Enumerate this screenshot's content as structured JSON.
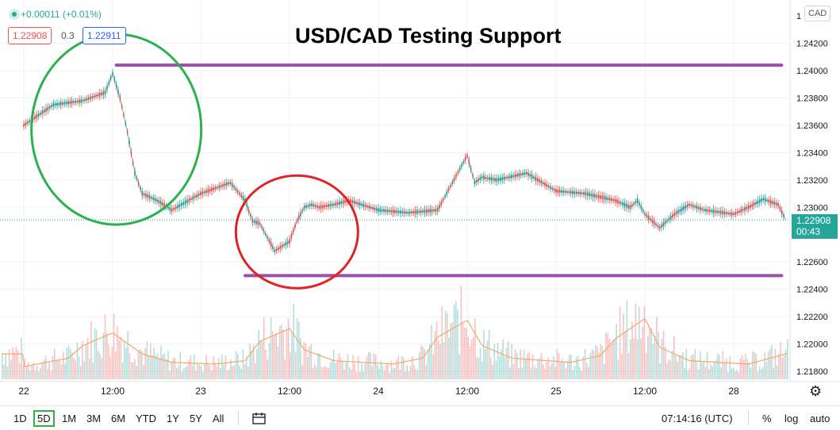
{
  "header": {
    "change": "+0.00011 (+0.01%)",
    "bid": "1.22908",
    "spread": "0.3",
    "ask": "1.22911"
  },
  "title": "USD/CAD Testing Support",
  "currency": "CAD",
  "last_price": {
    "price": "1.22908",
    "countdown": "00:43"
  },
  "toolbar": {
    "ranges": [
      "1D",
      "5D",
      "1M",
      "3M",
      "6M",
      "YTD",
      "1Y",
      "5Y",
      "All"
    ],
    "selected_range": "5D",
    "time": "07:14:16 (UTC)",
    "percent": "%",
    "log": "log",
    "auto": "auto"
  },
  "colors": {
    "up": "#26a69a",
    "down": "#ef5350",
    "resistance": "#9c4fa8",
    "green_circle": "#2bb24c",
    "red_circle": "#e02424",
    "volume_ma": "#f5a76a"
  },
  "chart_data": {
    "type": "line",
    "title": "USD/CAD Testing Support",
    "x_ticks": [
      "22",
      "12:00",
      "23",
      "12:00",
      "24",
      "12:00",
      "25",
      "12:00",
      "28"
    ],
    "y_ticks": [
      "1.24200",
      "1.24000",
      "1.23800",
      "1.23600",
      "1.23400",
      "1.23200",
      "1.23000",
      "1.22600",
      "1.22400",
      "1.22200",
      "1.22000",
      "1.21800"
    ],
    "ylim": [
      1.2175,
      1.2437
    ],
    "last_value": 1.22908,
    "series": [
      {
        "x": [
          "22 00:00",
          "22 04:00",
          "22 08:00",
          "22 11:00",
          "22 12:00",
          "22 13:00",
          "22 14:00",
          "22 15:00",
          "22 16:00",
          "22 18:00",
          "22 20:00",
          "23 00:00",
          "23 04:00",
          "23 06:00",
          "23 07:00",
          "23 08:00",
          "23 10:00",
          "23 12:00",
          "23 13:00",
          "23 14:00",
          "23 15:00",
          "23 16:00",
          "23 18:00",
          "23 20:00",
          "24 00:00",
          "24 04:00",
          "24 08:00",
          "24 12:00",
          "24 13:00",
          "24 14:00",
          "24 16:00",
          "24 20:00",
          "25 00:00",
          "25 04:00",
          "25 08:00",
          "25 10:00",
          "25 11:00",
          "25 12:00",
          "25 14:00",
          "25 16:00",
          "25 18:00",
          "25 20:00",
          "28 00:00",
          "28 02:00",
          "28 04:00",
          "28 06:00",
          "28 07:00"
        ],
        "values": [
          1.236,
          1.2375,
          1.2378,
          1.2384,
          1.2398,
          1.238,
          1.2355,
          1.2325,
          1.231,
          1.2305,
          1.2298,
          1.231,
          1.2318,
          1.2305,
          1.229,
          1.2288,
          1.2268,
          1.2275,
          1.229,
          1.23,
          1.2302,
          1.23,
          1.2302,
          1.2305,
          1.2298,
          1.2296,
          1.2298,
          1.2338,
          1.2318,
          1.2322,
          1.232,
          1.2325,
          1.2312,
          1.231,
          1.2305,
          1.23,
          1.2305,
          1.2295,
          1.2285,
          1.2295,
          1.2302,
          1.2298,
          1.2295,
          1.23,
          1.2306,
          1.2302,
          1.2291
        ]
      }
    ],
    "annotations": [
      {
        "type": "hline",
        "y": 1.2404,
        "x_start": "22 12:30",
        "x_end": "28 07:00",
        "label": "resistance"
      },
      {
        "type": "hline",
        "y": 1.225,
        "x_start": "23 06:00",
        "x_end": "28 07:00",
        "label": "support"
      },
      {
        "type": "ellipse",
        "center_x": "22 12:30",
        "center_y": 1.2357,
        "color": "green"
      },
      {
        "type": "ellipse",
        "center_x": "23 13:00",
        "center_y": 1.2282,
        "color": "red"
      }
    ],
    "volume": {
      "x": [
        "22 00:00",
        "22 06:00",
        "22 08:00",
        "22 12:00",
        "22 16:00",
        "22 20:00",
        "23 02:00",
        "23 06:00",
        "23 08:00",
        "23 12:00",
        "23 14:00",
        "23 18:00",
        "24 02:00",
        "24 06:00",
        "24 08:00",
        "24 12:00",
        "24 14:00",
        "24 18:00",
        "25 02:00",
        "25 06:00",
        "25 08:00",
        "25 12:00",
        "25 14:00",
        "25 18:00",
        "28 02:00",
        "28 07:00"
      ],
      "values": [
        15,
        25,
        40,
        55,
        30,
        20,
        18,
        22,
        45,
        60,
        35,
        22,
        18,
        25,
        50,
        70,
        40,
        25,
        20,
        28,
        48,
        72,
        38,
        22,
        18,
        30
      ]
    }
  }
}
